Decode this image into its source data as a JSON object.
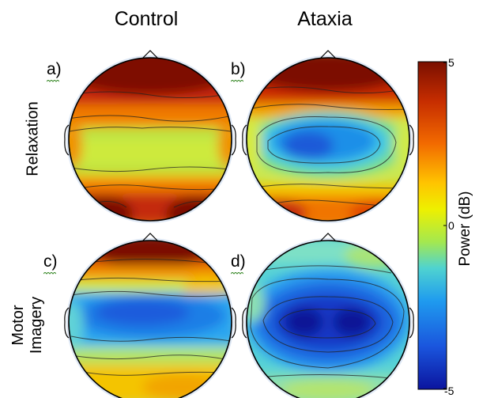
{
  "columns": {
    "left": "Control",
    "right": "Ataxia"
  },
  "rows": {
    "top": "Relaxation",
    "bottom_line1": "Motor",
    "bottom_line2": "Imagery"
  },
  "panels": {
    "a": "a)",
    "b": "b)",
    "c": "c)",
    "d": "d)"
  },
  "colorbar": {
    "title": "Power (dB)",
    "max_label": "5",
    "mid_label": "0",
    "min_label": "-5",
    "colors": [
      "#7a0f00",
      "#c62d00",
      "#f26a00",
      "#ffc400",
      "#eef000",
      "#a4e84f",
      "#4fd3d0",
      "#1f9bef",
      "#1a55dd",
      "#0b149e"
    ]
  },
  "scalp_maps": {
    "a": {
      "description_colors": [
        "dark red frontal",
        "yellow-green central band",
        "dark red occipital"
      ]
    },
    "b": {
      "description_colors": [
        "dark red frontal",
        "blue central",
        "orange occipital"
      ]
    },
    "c": {
      "description_colors": [
        "dark red frontal",
        "blue central",
        "yellow occipital"
      ]
    },
    "d": {
      "description_colors": [
        "cyan frontal",
        "dark blue central",
        "cyan-green occipital"
      ]
    }
  }
}
